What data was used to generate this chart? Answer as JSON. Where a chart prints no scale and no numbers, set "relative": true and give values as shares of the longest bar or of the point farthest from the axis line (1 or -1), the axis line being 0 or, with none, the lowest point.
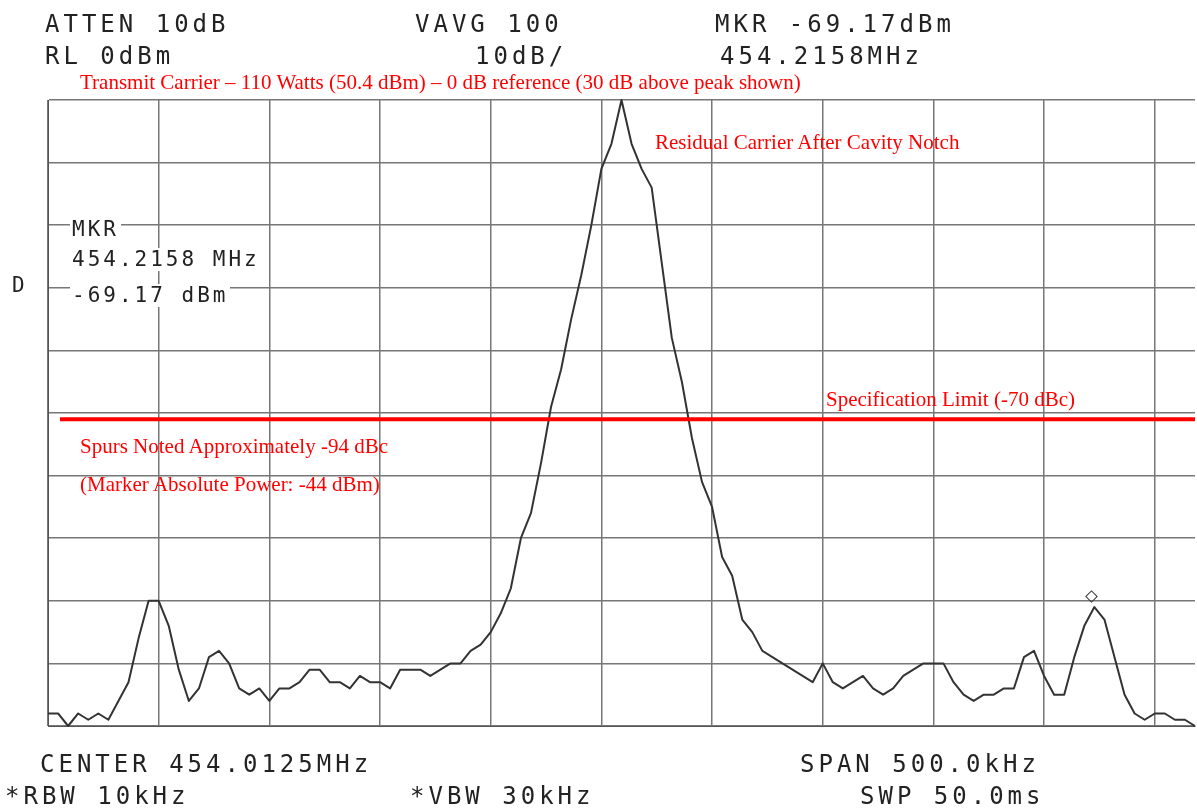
{
  "chart_data": {
    "type": "line",
    "relative": true,
    "categories": [
      null,
      null,
      null,
      null,
      null,
      null,
      null,
      null,
      null,
      null,
      null,
      null,
      null,
      null,
      null,
      null,
      null,
      null,
      null,
      null,
      null,
      null,
      null,
      null,
      null,
      null,
      null,
      null,
      null,
      null,
      null,
      null,
      null,
      null,
      null,
      null,
      null,
      null,
      null,
      null,
      null,
      null,
      null,
      null,
      null,
      null,
      null,
      null,
      null,
      null,
      null,
      null,
      null,
      null,
      null,
      null,
      null,
      null,
      null,
      null,
      null,
      null,
      null,
      null,
      null,
      null,
      null,
      null,
      null,
      null,
      null,
      null,
      null,
      null,
      null,
      null,
      null,
      null,
      null,
      null,
      null,
      null,
      null,
      null,
      null,
      null,
      null,
      null,
      null,
      null,
      null,
      null,
      null,
      null,
      null,
      null,
      null,
      null,
      null,
      null,
      null,
      null,
      null,
      null,
      null,
      null,
      null,
      null,
      null,
      null,
      null,
      null,
      null,
      null,
      null
    ],
    "series": [
      {
        "color": "#333333",
        "values": [
          0.02,
          0.02,
          0,
          0.02,
          0.01,
          0.02,
          0.01,
          0.04,
          0.07,
          0.14,
          0.2,
          0.2,
          0.16,
          0.09,
          0.04,
          0.06,
          0.11,
          0.12,
          0.1,
          0.06,
          0.05,
          0.06,
          0.04,
          0.06,
          0.06,
          0.07,
          0.09,
          0.09,
          0.07,
          0.07,
          0.06,
          0.08,
          0.07,
          0.07,
          0.06,
          0.09,
          0.09,
          0.09,
          0.08,
          0.09,
          0.1,
          0.1,
          0.12,
          0.13,
          0.15,
          0.18,
          0.22,
          0.3,
          0.34,
          0.42,
          0.51,
          0.57,
          0.65,
          0.72,
          0.8,
          0.89,
          0.93,
          1,
          0.93,
          0.89,
          0.86,
          0.74,
          0.62,
          0.55,
          0.46,
          0.39,
          0.35,
          0.27,
          0.24,
          0.17,
          0.15,
          0.12,
          0.11,
          0.1,
          0.09,
          0.08,
          0.07,
          0.1,
          0.07,
          0.06,
          0.07,
          0.08,
          0.06,
          0.05,
          0.06,
          0.08,
          0.09,
          0.1,
          0.1,
          0.1,
          0.07,
          0.05,
          0.04,
          0.05,
          0.05,
          0.06,
          0.06,
          0.11,
          0.12,
          0.08,
          0.05,
          0.05,
          0.11,
          0.16,
          0.19,
          0.17,
          0.11,
          0.05,
          0.02,
          0.01,
          0.02,
          0.02,
          0.01,
          0.01,
          0
        ]
      }
    ],
    "ref_lines": [
      {
        "axis": "y",
        "value": 0.49,
        "label": "Specification Limit (-70 dBc)",
        "color": "#ff0000"
      }
    ],
    "annotations": [
      "ATTEN 10dB",
      "VAVG 100",
      "MKR -69.17dBm",
      "RL 0dBm",
      "10dB/",
      "454.2158MHz",
      "Transmit Carrier – 110 Watts (50.4 dBm) – 0 dB reference (30 dB above peak shown)",
      "Residual Carrier After Cavity Notch",
      "MKR",
      "454.2158 MHz",
      "-69.17 dBm",
      "D",
      "Spurs Noted Approximately -94 dBc",
      "(Marker Absolute Power: -44 dBm)",
      "CENTER 454.0125MHz",
      "SPAN 500.0kHz",
      "*RBW 10kHz",
      "*VBW 30kHz",
      "SWP 50.0ms"
    ],
    "grid": true,
    "tick_labels": false
  }
}
